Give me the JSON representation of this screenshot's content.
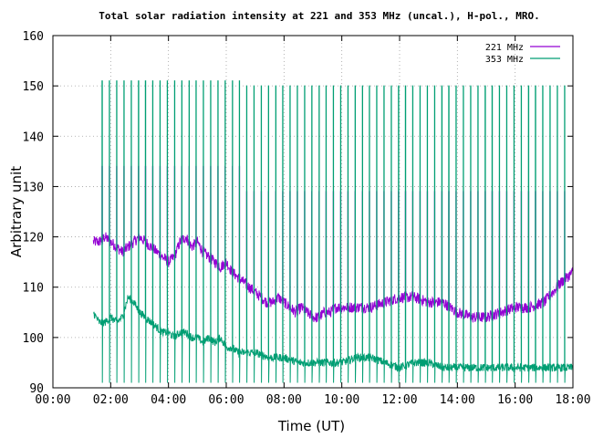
{
  "chart_data": {
    "type": "line",
    "title": "Total solar radiation intensity at 221 and 353 MHz (uncal.), H-pol., MRO.",
    "xlabel": "Time (UT)",
    "ylabel": "Arbitrary unit",
    "xlim": [
      0,
      18
    ],
    "ylim": [
      90,
      160
    ],
    "x_ticks": [
      {
        "value": 0,
        "label": "00:00"
      },
      {
        "value": 2,
        "label": "02:00"
      },
      {
        "value": 4,
        "label": "04:00"
      },
      {
        "value": 6,
        "label": "06:00"
      },
      {
        "value": 8,
        "label": "08:00"
      },
      {
        "value": 10,
        "label": "10:00"
      },
      {
        "value": 12,
        "label": "12:00"
      },
      {
        "value": 14,
        "label": "14:00"
      },
      {
        "value": 16,
        "label": "16:00"
      },
      {
        "value": 18,
        "label": "18:00"
      }
    ],
    "y_ticks": [
      {
        "value": 90,
        "label": "90"
      },
      {
        "value": 100,
        "label": "100"
      },
      {
        "value": 110,
        "label": "110"
      },
      {
        "value": 120,
        "label": "120"
      },
      {
        "value": 130,
        "label": "130"
      },
      {
        "value": 140,
        "label": "140"
      },
      {
        "value": 150,
        "label": "150"
      },
      {
        "value": 160,
        "label": "160"
      }
    ],
    "grid": true,
    "grid_style": "dotted",
    "legend_position": "top-right",
    "series": [
      {
        "name": "221 MHz",
        "color": "#9400d3",
        "x": [
          1.4,
          1.6,
          1.8,
          2.0,
          2.2,
          2.4,
          2.6,
          2.8,
          3.0,
          3.2,
          3.4,
          3.6,
          3.8,
          4.0,
          4.2,
          4.4,
          4.6,
          4.8,
          5.0,
          5.2,
          5.4,
          5.6,
          5.8,
          6.0,
          6.2,
          6.4,
          6.6,
          6.8,
          7.0,
          7.2,
          7.4,
          7.6,
          7.8,
          8.0,
          8.2,
          8.4,
          8.6,
          8.8,
          9.0,
          9.2,
          9.4,
          9.6,
          9.8,
          10.0,
          10.5,
          11.0,
          11.5,
          12.0,
          12.5,
          13.0,
          13.5,
          14.0,
          14.5,
          15.0,
          15.5,
          16.0,
          16.5,
          17.0,
          17.3,
          17.6,
          17.8,
          18.0
        ],
        "y": [
          119,
          119,
          120,
          119,
          118,
          117,
          118,
          119,
          120,
          119,
          118,
          117,
          116,
          115,
          116,
          119,
          120,
          118,
          119,
          117,
          116,
          115,
          114,
          115,
          113,
          112,
          111,
          110,
          109,
          108,
          107,
          107,
          108,
          107,
          106,
          105,
          106,
          105,
          104,
          104,
          105,
          105,
          106,
          106,
          106,
          106,
          107,
          108,
          108,
          107,
          107,
          105,
          104,
          104,
          105,
          106,
          106,
          107,
          109,
          111,
          112,
          113
        ],
        "baseline_description": "continuous trace with periodic calibration spikes",
        "spike_top": 134,
        "spike_top_later": 129
      },
      {
        "name": "353 MHz",
        "color": "#009e73",
        "x": [
          1.4,
          1.6,
          1.8,
          2.0,
          2.2,
          2.4,
          2.6,
          2.8,
          3.0,
          3.2,
          3.4,
          3.6,
          3.8,
          4.0,
          4.2,
          4.4,
          4.6,
          4.8,
          5.0,
          5.2,
          5.4,
          5.6,
          5.8,
          6.0,
          6.2,
          6.4,
          6.6,
          6.8,
          7.0,
          7.5,
          8.0,
          8.5,
          9.0,
          9.5,
          10.0,
          10.5,
          11.0,
          11.5,
          12.0,
          12.5,
          13.0,
          13.5,
          14.0,
          14.5,
          15.0,
          15.5,
          16.0,
          16.5,
          17.0,
          17.5,
          18.0
        ],
        "y": [
          105,
          103,
          103,
          104,
          103,
          104,
          108,
          107,
          105,
          104,
          103,
          102,
          101,
          101,
          100,
          101,
          101,
          100,
          100,
          99,
          100,
          99,
          100,
          98,
          98,
          97,
          97,
          97,
          97,
          96,
          96,
          95,
          95,
          95,
          95,
          96,
          96,
          95,
          94,
          95,
          95,
          94,
          94,
          94,
          94,
          94,
          94,
          94,
          94,
          94,
          94
        ],
        "spike_top": 151,
        "spike_top_later": 150
      }
    ],
    "spike_times": [
      1.7,
      1.95,
      2.2,
      2.45,
      2.7,
      2.95,
      3.2,
      3.45,
      3.7,
      3.95,
      4.2,
      4.45,
      4.7,
      4.95,
      5.2,
      5.45,
      5.7,
      5.95,
      6.2,
      6.45,
      6.7,
      6.95,
      7.2,
      7.45,
      7.7,
      7.95,
      8.2,
      8.45,
      8.7,
      8.95,
      9.2,
      9.45,
      9.7,
      9.95,
      10.2,
      10.45,
      10.7,
      10.95,
      11.2,
      11.45,
      11.7,
      11.95,
      12.2,
      12.45,
      12.7,
      12.95,
      13.2,
      13.45,
      13.7,
      13.95,
      14.2,
      14.45,
      14.7,
      14.95,
      15.2,
      15.45,
      15.7,
      15.95,
      16.2,
      16.45,
      16.7,
      16.95,
      17.2,
      17.45,
      17.7
    ],
    "annotations": []
  }
}
